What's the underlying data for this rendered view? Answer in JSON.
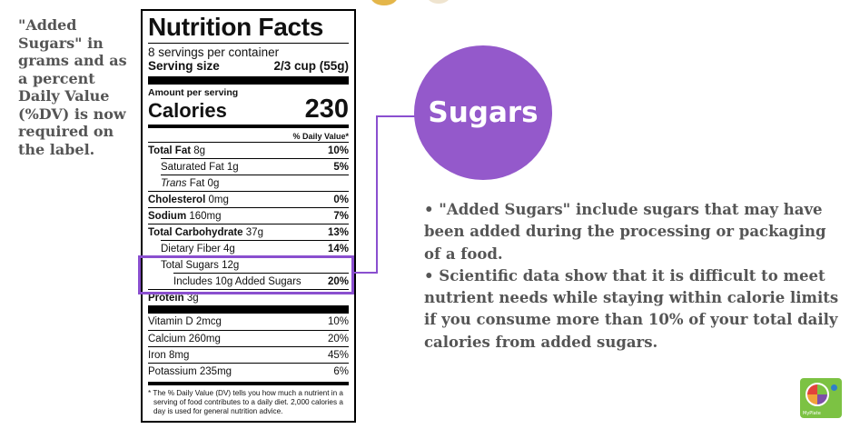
{
  "side_note": "\"Added Sugars\" in grams and as a percent Daily Value (%DV) is now required on the label.",
  "label": {
    "title": "Nutrition Facts",
    "servings": "8 servings per container",
    "serving_size_label": "Serving size",
    "serving_size_value": "2/3 cup (55g)",
    "amount_per_serving": "Amount per serving",
    "calories_label": "Calories",
    "calories_value": "230",
    "dv_header": "% Daily Value*",
    "nutrients": [
      {
        "name": "Total Fat",
        "amount": "8g",
        "pct": "10%"
      },
      {
        "name": "Saturated Fat",
        "amount": "1g",
        "pct": "5%"
      },
      {
        "name": "Trans",
        "amount": "Fat 0g",
        "pct": ""
      },
      {
        "name": "Cholesterol",
        "amount": "0mg",
        "pct": "0%"
      },
      {
        "name": "Sodium",
        "amount": "160mg",
        "pct": "7%"
      },
      {
        "name": "Total Carbohydrate",
        "amount": "37g",
        "pct": "13%"
      },
      {
        "name": "Dietary Fiber",
        "amount": "4g",
        "pct": "14%"
      },
      {
        "name": "Total Sugars",
        "amount": "12g",
        "pct": ""
      },
      {
        "name": "Includes 10g Added Sugars",
        "amount": "",
        "pct": "20%"
      },
      {
        "name": "Protein",
        "amount": "3g",
        "pct": ""
      }
    ],
    "vitamins": [
      {
        "name": "Vitamin D 2mcg",
        "pct": "10%"
      },
      {
        "name": "Calcium 260mg",
        "pct": "20%"
      },
      {
        "name": "Iron 8mg",
        "pct": "45%"
      },
      {
        "name": "Potassium 235mg",
        "pct": "6%"
      }
    ],
    "footnote": "* The % Daily Value (DV) tells you how much a nutrient in a serving of food contributes to a daily diet. 2,000 calories a day is used for general nutrition advice."
  },
  "circle_label": "Sugars",
  "bullets": [
    "• \"Added Sugars\" include sugars that may have been added during the processing or packaging of a food.",
    "• Scientific data show that it is difficult to meet nutrient needs while staying within calorie limits if you consume more than 10% of your total daily calories from added sugars."
  ],
  "logo_caption": "MyPlate",
  "colors": {
    "accent": "#9459cb",
    "highlight": "#8a4fcf",
    "text_gray": "#555555",
    "logo_green": "#7cc243"
  }
}
